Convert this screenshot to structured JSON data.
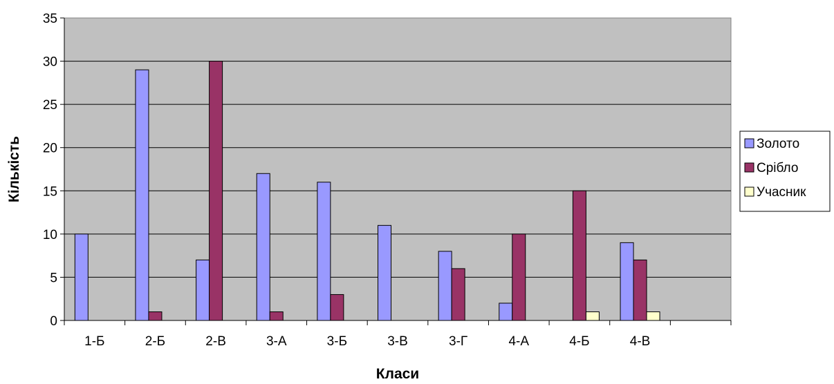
{
  "chart_data": {
    "type": "bar",
    "xlabel": "Класи",
    "ylabel": "Кількість",
    "categories": [
      "1-Б",
      "2-Б",
      "2-В",
      "3-А",
      "3-Б",
      "3-В",
      "3-Г",
      "4-А",
      "4-Б",
      "4-В",
      ""
    ],
    "series": [
      {
        "name": "Золото",
        "color": "#9999ff",
        "values": [
          10,
          29,
          7,
          17,
          16,
          11,
          8,
          2,
          0,
          9,
          0
        ]
      },
      {
        "name": "Срібло",
        "color": "#993366",
        "values": [
          0,
          1,
          30,
          1,
          3,
          0,
          6,
          10,
          15,
          7,
          0
        ]
      },
      {
        "name": "Учасник",
        "color": "#ffffcc",
        "values": [
          0,
          0,
          0,
          0,
          0,
          0,
          0,
          0,
          1,
          1,
          0
        ]
      }
    ],
    "ylim": [
      0,
      35
    ],
    "yticks": [
      0,
      5,
      10,
      15,
      20,
      25,
      30,
      35
    ],
    "grid": true,
    "legend": "right",
    "plot_background": "#c0c0c0"
  }
}
